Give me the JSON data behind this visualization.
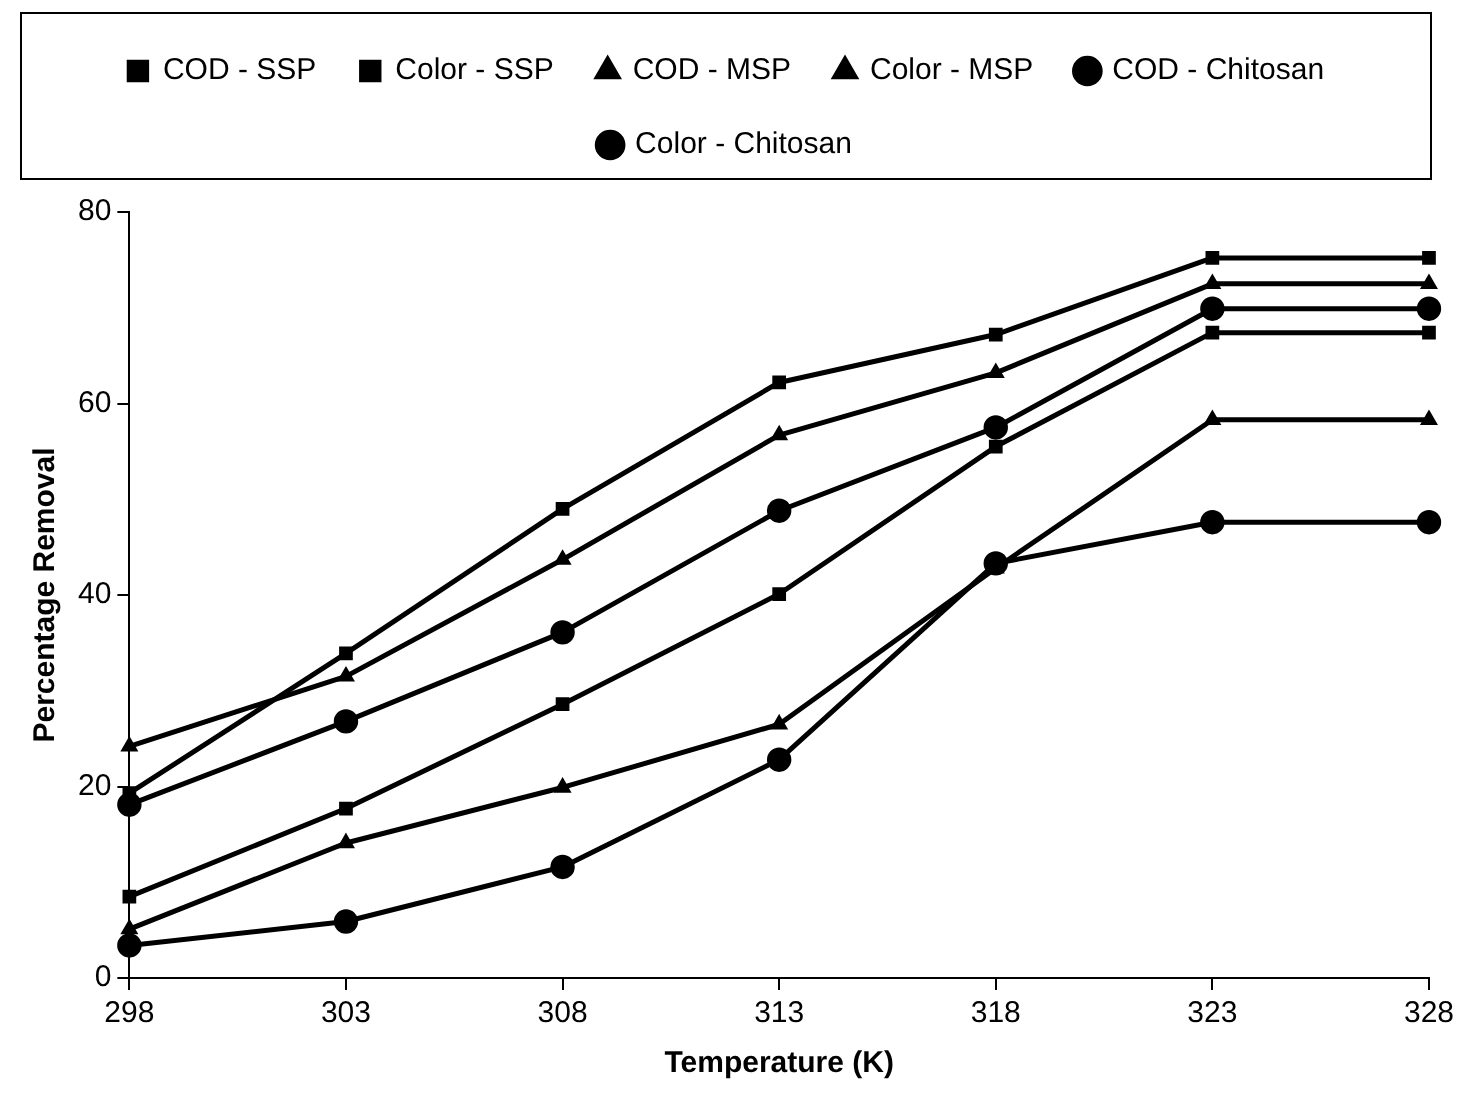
{
  "chart_data": {
    "type": "line",
    "xlabel": "Temperature (K)",
    "ylabel": "Percentage Removal",
    "x": [
      298,
      303,
      308,
      313,
      318,
      323,
      328
    ],
    "xlim": [
      298,
      328
    ],
    "xticks": [
      298,
      303,
      308,
      313,
      318,
      323,
      328
    ],
    "ylim": [
      0,
      80
    ],
    "yticks": [
      0,
      20,
      40,
      60,
      80
    ],
    "grid": false,
    "legend": "top",
    "line_style": "solid",
    "series": [
      {
        "name": "COD - SSP",
        "color": "#000000",
        "marker": "square",
        "values": [
          19.3,
          33.9,
          49.0,
          62.2,
          67.2,
          75.2,
          75.2
        ]
      },
      {
        "name": "Color - SSP",
        "color": "#000000",
        "marker": "square",
        "values": [
          8.5,
          17.7,
          28.6,
          40.1,
          55.5,
          67.4,
          67.4
        ]
      },
      {
        "name": "COD - MSP",
        "color": "#000000",
        "marker": "triangle",
        "values": [
          24.2,
          31.5,
          43.7,
          56.7,
          63.2,
          72.5,
          72.5
        ]
      },
      {
        "name": "Color - MSP",
        "color": "#000000",
        "marker": "triangle",
        "values": [
          5.1,
          14.1,
          19.9,
          26.5,
          42.8,
          58.3,
          58.3
        ]
      },
      {
        "name": "COD - Chitosan",
        "color": "#000000",
        "marker": "circle",
        "values": [
          18.1,
          26.8,
          36.1,
          48.8,
          57.5,
          69.9,
          69.9
        ]
      },
      {
        "name": "Color - Chitosan",
        "color": "#000000",
        "marker": "circle",
        "values": [
          3.4,
          5.9,
          11.6,
          22.8,
          43.3,
          47.6,
          47.6
        ]
      }
    ]
  }
}
